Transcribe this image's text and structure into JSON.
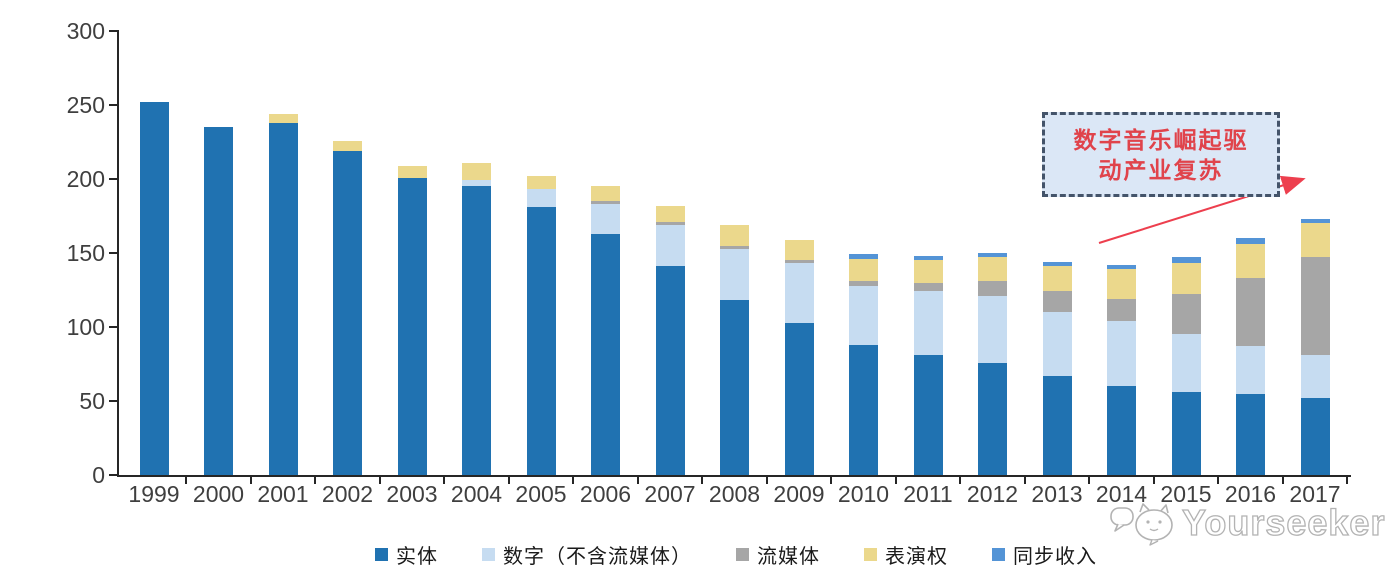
{
  "chart_data": {
    "type": "bar",
    "stacked": true,
    "title": "",
    "xlabel": "",
    "ylabel": "",
    "ylim": [
      0,
      300
    ],
    "yticks": [
      0,
      50,
      100,
      150,
      200,
      250,
      300
    ],
    "grid": false,
    "legend_position": "bottom",
    "categories": [
      "1999",
      "2000",
      "2001",
      "2002",
      "2003",
      "2004",
      "2005",
      "2006",
      "2007",
      "2008",
      "2009",
      "2010",
      "2011",
      "2012",
      "2013",
      "2014",
      "2015",
      "2016",
      "2017"
    ],
    "series": [
      {
        "name": "实体",
        "color": "#2072b1",
        "values": [
          252,
          235,
          238,
          219,
          201,
          195,
          181,
          163,
          141,
          118,
          103,
          88,
          81,
          76,
          67,
          60,
          56,
          55,
          52
        ]
      },
      {
        "name": "数字（不含流媒体）",
        "color": "#c6dcf1",
        "values": [
          0,
          0,
          0,
          0,
          0,
          4,
          12,
          20,
          28,
          35,
          40,
          40,
          43,
          45,
          43,
          44,
          39,
          32,
          29
        ]
      },
      {
        "name": "流媒体",
        "color": "#a6a6a6",
        "values": [
          0,
          0,
          0,
          0,
          0,
          0,
          0,
          2,
          2,
          2,
          2,
          3,
          6,
          10,
          14,
          15,
          27,
          46,
          66
        ]
      },
      {
        "name": "表演权",
        "color": "#ebd88c",
        "values": [
          0,
          0,
          6,
          7,
          8,
          12,
          9,
          10,
          11,
          14,
          14,
          15,
          15,
          16,
          17,
          20,
          21,
          23,
          23
        ]
      },
      {
        "name": "同步收入",
        "color": "#5494d6",
        "values": [
          0,
          0,
          0,
          0,
          0,
          0,
          0,
          0,
          0,
          0,
          0,
          3,
          3,
          3,
          3,
          3,
          4,
          4,
          3
        ]
      }
    ]
  },
  "annotation": {
    "line1": "数字音乐崛起驱",
    "line2": "动产业复苏",
    "text_color": "#e0434b",
    "border_color": "#44546a",
    "fill_color": "#dbe7f6",
    "arrow_color": "#ed3f4e"
  },
  "watermark": {
    "text": "Yourseeker"
  },
  "colors": {
    "axis_line": "#262626",
    "axis_text": "#3f3f3f",
    "background": "#ffffff"
  }
}
